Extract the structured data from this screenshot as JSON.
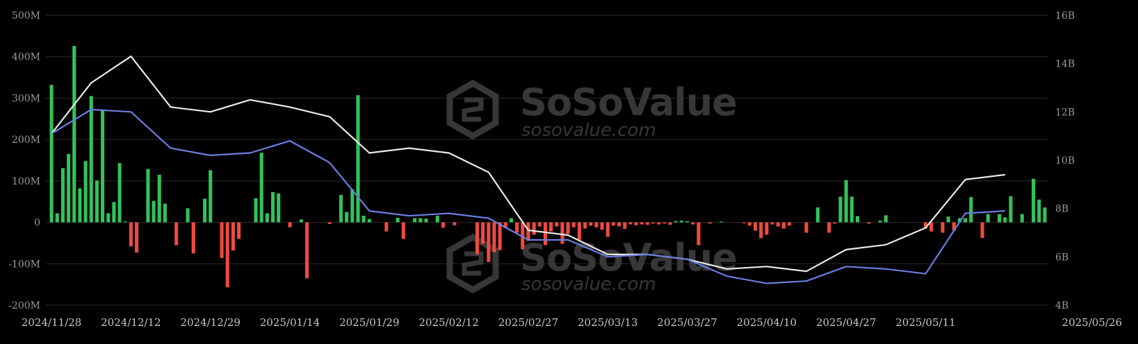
{
  "chart_data": {
    "type": "bar",
    "watermark": {
      "brand": "SoSoValue",
      "url": "sosovalue.com"
    },
    "left_axis": {
      "ylim": [
        -200,
        500
      ],
      "ticks": [
        "500M",
        "400M",
        "300M",
        "200M",
        "100M",
        "0",
        "-100M",
        "-200M"
      ]
    },
    "right_axis": {
      "ylim": [
        4,
        16
      ],
      "ticks": [
        "16B",
        "14B",
        "12B",
        "10B",
        "8B",
        "6B",
        "4B"
      ]
    },
    "x_ticks": [
      "2024/11/28",
      "2024/12/12",
      "2024/12/29",
      "2025/01/14",
      "2025/01/29",
      "2025/02/12",
      "2025/02/27",
      "2025/03/13",
      "2025/03/27",
      "2025/04/10",
      "2025/04/27",
      "2025/05/11",
      "2025/05/26"
    ],
    "x_tick_index": [
      0,
      14,
      28,
      42,
      56,
      70,
      84,
      98,
      112,
      126,
      140,
      154,
      168
    ],
    "colors": {
      "positive": "#33c25a",
      "negative": "#f04a40",
      "white_line": "#eaeaea",
      "blue_line": "#6b7ee0",
      "grid": "#2b2b2b"
    },
    "series": [
      {
        "type": "bar",
        "axis": "left",
        "values": [
          332,
          22,
          131,
          165,
          426,
          82,
          148,
          305,
          101,
          272,
          22,
          49,
          143,
          2,
          -58,
          -73,
          0,
          129,
          52,
          115,
          45,
          0,
          -55,
          0,
          34,
          -75,
          0,
          57,
          126,
          0,
          -86,
          -157,
          -68,
          -40,
          0,
          0,
          58,
          168,
          22,
          73,
          70,
          0,
          -12,
          0,
          7,
          -135,
          0,
          0,
          0,
          -4,
          0,
          66,
          25,
          80,
          307,
          16,
          8,
          0,
          0,
          -22,
          0,
          11,
          -40,
          0,
          10,
          10,
          9,
          0,
          16,
          -13,
          0,
          -7,
          0,
          0,
          0,
          -77,
          -52,
          -96,
          -72,
          -67,
          -14,
          10,
          -25,
          -65,
          -45,
          -30,
          -10,
          -55,
          -22,
          -10,
          -52,
          -28,
          -12,
          -42,
          -15,
          -8,
          -12,
          -18,
          -35,
          -8,
          -10,
          -16,
          -5,
          -7,
          -5,
          -6,
          -3,
          -5,
          -3,
          -6,
          3,
          4,
          3,
          -5,
          -55,
          0,
          -3,
          0,
          2,
          0,
          0,
          0,
          -2,
          -8,
          -20,
          -38,
          -30,
          -5,
          -10,
          -15,
          -8,
          0,
          0,
          -25,
          0,
          36,
          0,
          -25,
          -3,
          62,
          102,
          62,
          15,
          0,
          -3,
          0,
          4,
          17,
          0,
          0,
          0,
          0,
          0,
          0,
          -15,
          -22,
          0,
          -25,
          14,
          -20,
          10,
          10,
          61,
          0,
          -38,
          20,
          0,
          20,
          12,
          63,
          0,
          20,
          0,
          105,
          55,
          36
        ]
      },
      {
        "type": "line",
        "axis": "right",
        "name": "",
        "x": [
          0,
          7,
          14,
          21,
          28,
          35,
          42,
          49,
          56,
          63,
          70,
          77,
          84,
          91,
          98,
          105,
          112,
          119,
          126,
          133,
          140,
          147,
          154,
          161,
          168
        ],
        "values": [
          11.1,
          13.2,
          14.3,
          12.2,
          12.0,
          12.5,
          12.2,
          11.8,
          10.3,
          10.5,
          10.3,
          9.5,
          7.1,
          6.9,
          6.1,
          6.1,
          5.9,
          5.5,
          5.6,
          5.4,
          6.3,
          6.5,
          7.2,
          9.2,
          9.4
        ]
      },
      {
        "type": "line",
        "axis": "right",
        "name": "",
        "x": [
          0,
          7,
          14,
          21,
          28,
          35,
          42,
          49,
          56,
          63,
          70,
          77,
          84,
          91,
          98,
          105,
          112,
          119,
          126,
          133,
          140,
          147,
          154,
          161,
          168
        ],
        "values": [
          11.1,
          12.1,
          12.0,
          10.5,
          10.2,
          10.3,
          10.8,
          9.9,
          7.9,
          7.7,
          7.8,
          7.6,
          6.7,
          6.7,
          6.0,
          6.1,
          5.9,
          5.2,
          4.9,
          5.0,
          5.6,
          5.5,
          5.3,
          7.8,
          7.9
        ]
      }
    ]
  }
}
